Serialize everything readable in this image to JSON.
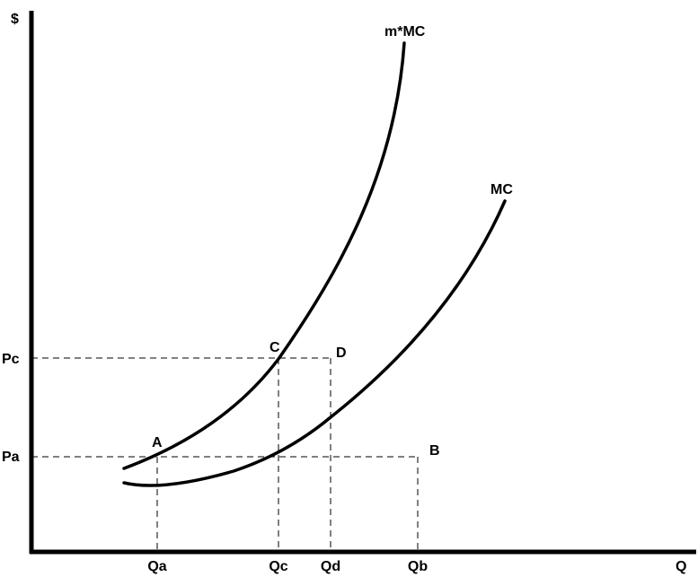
{
  "axes": {
    "y_label": "$",
    "x_label": "Q"
  },
  "curves": [
    {
      "label": "m*MC"
    },
    {
      "label": "MC"
    }
  ],
  "points": [
    {
      "label": "A"
    },
    {
      "label": "B"
    },
    {
      "label": "C"
    },
    {
      "label": "D"
    }
  ],
  "price_labels": [
    "Pc",
    "Pa"
  ],
  "quantity_labels": [
    "Qa",
    "Qc",
    "Qd",
    "Qb"
  ]
}
